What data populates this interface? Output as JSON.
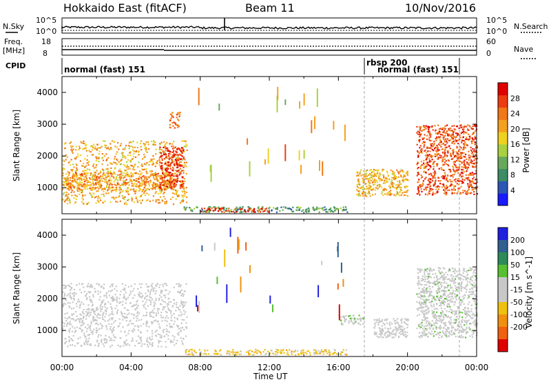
{
  "header": {
    "title": "Hokkaido East (fitACF)",
    "beam": "Beam 11",
    "date": "10/Nov/2016"
  },
  "noise_panel": {
    "left_label": "N.Sky",
    "right_label": "N.Search",
    "left_ticks": [
      "10^5",
      "10^0"
    ],
    "right_ticks": [
      "10^5",
      "10^0"
    ]
  },
  "freq_panel": {
    "left_label_1": "Freq.",
    "left_label_2": "[MHz]",
    "left_ticks": [
      "18",
      "8"
    ],
    "right_label": "Nave",
    "right_ticks": [
      "60",
      "0"
    ]
  },
  "cpid_panel": {
    "label": "CPID",
    "segments": [
      {
        "text": "normal (fast) 151",
        "start_hour": 0.0
      },
      {
        "text": "rbsp 200",
        "start_hour": 17.5
      },
      {
        "text": "normal (fast) 151",
        "start_hour": 17.5
      }
    ],
    "segment_boundaries_hours": [
      17.5,
      23.0
    ]
  },
  "colors": {
    "power_scale": [
      "#1a1aff",
      "#2c56b4",
      "#3c8c64",
      "#68a85c",
      "#a8d040",
      "#f0d020",
      "#f4a020",
      "#f07818",
      "#ee3c10",
      "#e00000"
    ],
    "velocity_scale": [
      "#2020e0",
      "#306090",
      "#2e8a58",
      "#58c030",
      "#c8c8c8",
      "#c8c8c8",
      "#f0c010",
      "#f09010",
      "#f06010",
      "#e00000"
    ]
  },
  "chart_data": [
    {
      "type": "heatmap",
      "xlabel": "",
      "ylabel": "Slant Range [km]",
      "xlim": [
        0,
        24
      ],
      "ylim": [
        180,
        4500
      ],
      "yticks": [
        1000,
        2000,
        3000,
        4000
      ],
      "colorbar": {
        "label": "Power [dB]",
        "range": [
          0,
          32
        ],
        "ticks": [
          4,
          8,
          12,
          16,
          20,
          24,
          28
        ]
      },
      "regions": [
        {
          "x": [
            0.0,
            7.2
          ],
          "y": [
            500,
            2500
          ],
          "value": 20
        },
        {
          "x": [
            0.0,
            6.5
          ],
          "y": [
            950,
            1500
          ],
          "value": 22
        },
        {
          "x": [
            5.6,
            7.0
          ],
          "y": [
            1000,
            2300
          ],
          "value": 28
        },
        {
          "x": [
            6.2,
            6.8
          ],
          "y": [
            2900,
            3400
          ],
          "value": 24
        },
        {
          "x": [
            7.0,
            16.5
          ],
          "y": [
            250,
            420
          ],
          "value": 10
        },
        {
          "x": [
            8.0,
            12.0
          ],
          "y": [
            250,
            380
          ],
          "value": 28
        },
        {
          "x": [
            17.0,
            20.0
          ],
          "y": [
            750,
            1600
          ],
          "value": 20
        },
        {
          "x": [
            20.5,
            24.0
          ],
          "y": [
            800,
            3000
          ],
          "value": 26
        }
      ]
    },
    {
      "type": "heatmap",
      "xlabel": "Time UT",
      "ylabel": "Slant Range [km]",
      "xlim": [
        0,
        24
      ],
      "ylim": [
        180,
        4500
      ],
      "xticks": [
        "00:00",
        "04:00",
        "08:00",
        "12:00",
        "16:00",
        "20:00",
        "00:00"
      ],
      "yticks": [
        1000,
        2000,
        3000,
        4000
      ],
      "colorbar": {
        "label": "Velocity [m s^-1]",
        "ticks": [
          200,
          100,
          50,
          15,
          -15,
          -50,
          -100,
          -200
        ]
      },
      "regions": [
        {
          "x": [
            0.0,
            7.2
          ],
          "y": [
            500,
            2500
          ],
          "value": 0
        },
        {
          "x": [
            7.0,
            16.5
          ],
          "y": [
            250,
            420
          ],
          "value": -60
        },
        {
          "x": [
            16.0,
            17.5
          ],
          "y": [
            1200,
            1500
          ],
          "value": 30
        },
        {
          "x": [
            18.0,
            20.0
          ],
          "y": [
            800,
            1400
          ],
          "value": 0
        },
        {
          "x": [
            20.5,
            24.0
          ],
          "y": [
            800,
            3000
          ],
          "value": 20
        }
      ]
    }
  ]
}
